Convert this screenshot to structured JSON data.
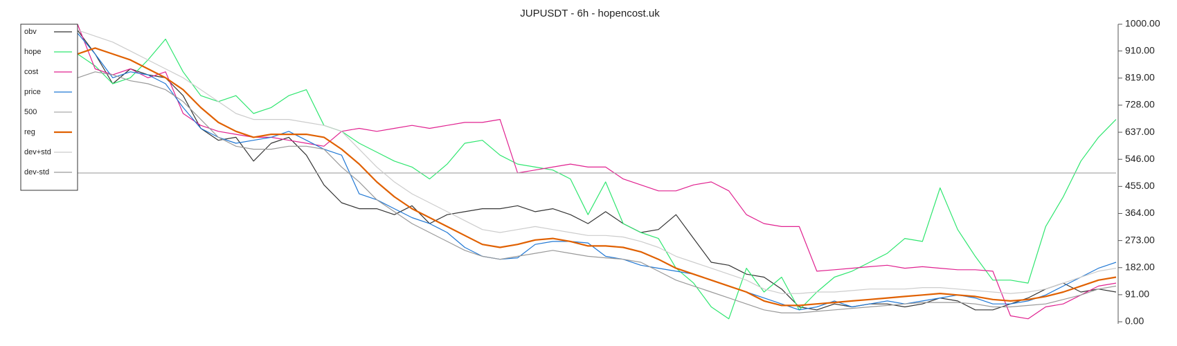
{
  "chart_data": {
    "type": "line",
    "title": "JUPUSDT - 6h - hopencost.uk",
    "ylim": [
      0,
      1000
    ],
    "yticks": [
      {
        "value": 0,
        "label": "0.00"
      },
      {
        "value": 91,
        "label": "91.00"
      },
      {
        "value": 182,
        "label": "182.00"
      },
      {
        "value": 273,
        "label": "273.00"
      },
      {
        "value": 364,
        "label": "364.00"
      },
      {
        "value": 455,
        "label": "455.00"
      },
      {
        "value": 546,
        "label": "546.00"
      },
      {
        "value": 637,
        "label": "637.00"
      },
      {
        "value": 728,
        "label": "728.00"
      },
      {
        "value": 819,
        "label": "819.00"
      },
      {
        "value": 910,
        "label": "910.00"
      },
      {
        "value": 1000,
        "label": "1000.00"
      }
    ],
    "legend": "upper left",
    "grid": false,
    "series": [
      {
        "name": "obv",
        "color": "#333333",
        "width": 1.2,
        "values": [
          980,
          900,
          800,
          850,
          830,
          820,
          760,
          650,
          610,
          620,
          540,
          600,
          620,
          560,
          460,
          400,
          380,
          380,
          360,
          390,
          330,
          360,
          370,
          380,
          380,
          390,
          370,
          380,
          360,
          330,
          370,
          330,
          300,
          310,
          360,
          280,
          200,
          190,
          160,
          150,
          110,
          50,
          40,
          60,
          50,
          60,
          60,
          50,
          60,
          80,
          70,
          40,
          40,
          60,
          80,
          110,
          130,
          100,
          110,
          100
        ]
      },
      {
        "name": "hope",
        "color": "#2ee66f",
        "width": 1.2,
        "values": [
          900,
          860,
          800,
          820,
          880,
          950,
          840,
          760,
          740,
          760,
          700,
          720,
          760,
          780,
          660,
          640,
          600,
          570,
          540,
          520,
          480,
          530,
          600,
          610,
          560,
          530,
          520,
          510,
          480,
          360,
          470,
          330,
          300,
          280,
          180,
          130,
          50,
          10,
          180,
          100,
          150,
          40,
          100,
          150,
          170,
          200,
          230,
          280,
          270,
          450,
          310,
          220,
          140,
          140,
          130,
          320,
          420,
          540,
          620,
          680
        ]
      },
      {
        "name": "cost",
        "color": "#e0208f",
        "width": 1.2,
        "values": [
          1000,
          850,
          830,
          850,
          820,
          840,
          700,
          660,
          640,
          630,
          620,
          620,
          610,
          600,
          590,
          640,
          650,
          640,
          650,
          660,
          650,
          660,
          670,
          670,
          680,
          500,
          510,
          520,
          530,
          520,
          520,
          480,
          460,
          440,
          440,
          460,
          470,
          440,
          360,
          330,
          320,
          320,
          170,
          175,
          180,
          185,
          190,
          180,
          185,
          180,
          175,
          175,
          170,
          20,
          10,
          50,
          60,
          90,
          120,
          130
        ]
      },
      {
        "name": "price",
        "color": "#1f77d4",
        "width": 1.2,
        "values": [
          970,
          900,
          820,
          840,
          830,
          800,
          720,
          650,
          620,
          600,
          610,
          620,
          640,
          610,
          580,
          560,
          430,
          410,
          380,
          350,
          330,
          300,
          250,
          220,
          210,
          215,
          260,
          270,
          270,
          265,
          220,
          210,
          190,
          180,
          170,
          160,
          140,
          120,
          100,
          80,
          60,
          40,
          50,
          70,
          50,
          60,
          70,
          60,
          70,
          80,
          90,
          80,
          60,
          60,
          70,
          90,
          120,
          150,
          180,
          200
        ]
      },
      {
        "name": "500",
        "color": "#aaaaaa",
        "width": 1.2,
        "values": [
          500,
          500,
          500,
          500,
          500,
          500,
          500,
          500,
          500,
          500,
          500,
          500,
          500,
          500,
          500,
          500,
          500,
          500,
          500,
          500,
          500,
          500,
          500,
          500,
          500,
          500,
          500,
          500,
          500,
          500,
          500,
          500,
          500,
          500,
          500,
          500,
          500,
          500,
          500,
          500,
          500,
          500,
          500,
          500,
          500,
          500,
          500,
          500,
          500,
          500,
          500,
          500,
          500,
          500,
          500,
          500,
          500,
          500,
          500,
          500
        ]
      },
      {
        "name": "reg",
        "color": "#e06000",
        "width": 2.2,
        "values": [
          900,
          920,
          900,
          880,
          850,
          820,
          780,
          720,
          670,
          640,
          620,
          630,
          630,
          630,
          620,
          580,
          530,
          470,
          420,
          380,
          350,
          320,
          290,
          260,
          250,
          260,
          275,
          280,
          270,
          255,
          255,
          250,
          235,
          210,
          180,
          160,
          140,
          120,
          100,
          70,
          55,
          55,
          60,
          65,
          70,
          75,
          80,
          85,
          90,
          95,
          90,
          85,
          75,
          70,
          75,
          85,
          100,
          120,
          140,
          150
        ]
      },
      {
        "name": "dev+std",
        "color": "#cccccc",
        "width": 1.2,
        "values": [
          980,
          960,
          940,
          910,
          880,
          850,
          820,
          780,
          740,
          700,
          680,
          680,
          680,
          670,
          660,
          640,
          580,
          520,
          470,
          430,
          400,
          370,
          340,
          310,
          300,
          310,
          320,
          310,
          300,
          290,
          290,
          285,
          270,
          250,
          220,
          200,
          180,
          160,
          140,
          110,
          95,
          95,
          100,
          100,
          105,
          110,
          110,
          110,
          115,
          115,
          110,
          105,
          100,
          95,
          100,
          110,
          130,
          150,
          170,
          180
        ]
      },
      {
        "name": "dev-std",
        "color": "#999999",
        "width": 1.2,
        "values": [
          820,
          840,
          830,
          810,
          800,
          780,
          740,
          680,
          620,
          590,
          580,
          580,
          590,
          590,
          580,
          520,
          470,
          410,
          370,
          330,
          300,
          270,
          240,
          220,
          210,
          220,
          230,
          240,
          230,
          220,
          215,
          210,
          200,
          170,
          140,
          120,
          100,
          80,
          60,
          40,
          30,
          30,
          35,
          40,
          45,
          50,
          55,
          60,
          65,
          65,
          65,
          60,
          50,
          50,
          55,
          60,
          75,
          90,
          110,
          120
        ]
      }
    ]
  }
}
